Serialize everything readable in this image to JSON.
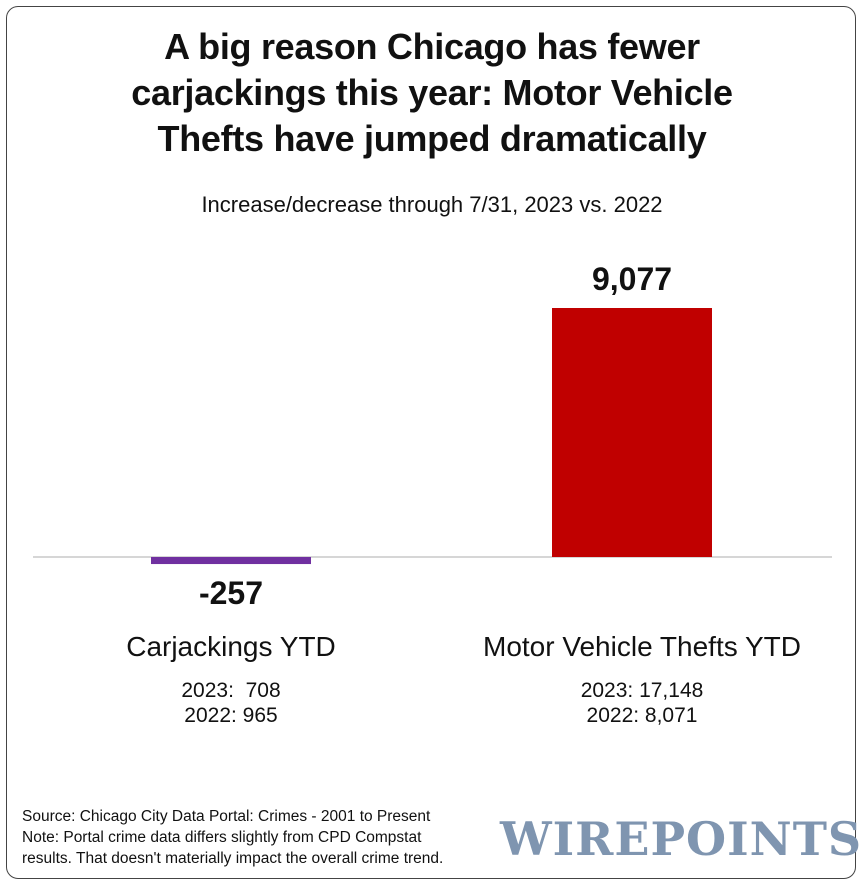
{
  "title_lines": [
    "A big reason Chicago has fewer",
    "carjackings this year: Motor Vehicle",
    "Thefts have jumped dramatically"
  ],
  "subtitle": "Increase/decrease through 7/31, 2023 vs. 2022",
  "chart_data": {
    "type": "bar",
    "title": "A big reason Chicago has fewer carjackings this year: Motor Vehicle Thefts have jumped dramatically",
    "subtitle": "Increase/decrease through 7/31, 2023 vs. 2022",
    "categories": [
      "Carjackings YTD",
      "Motor Vehicle Thefts YTD"
    ],
    "values": [
      -257,
      9077
    ],
    "value_labels": [
      "-257",
      "9,077"
    ],
    "colors": [
      "#7030a0",
      "#c00000"
    ],
    "details": [
      [
        "2023:  708",
        "2022: 965"
      ],
      [
        "2023: 17,148",
        "2022: 8,071"
      ]
    ],
    "ylim": [
      -257,
      9077
    ],
    "grid": false,
    "legend": "none"
  },
  "source_lines": [
    "Source: Chicago City Data Portal: Crimes - 2001 to Present",
    "Note: Portal crime data differs slightly from CPD Compstat",
    "results. That doesn't materially impact the overall crime trend."
  ],
  "logo_text": "WIREPOINTS"
}
